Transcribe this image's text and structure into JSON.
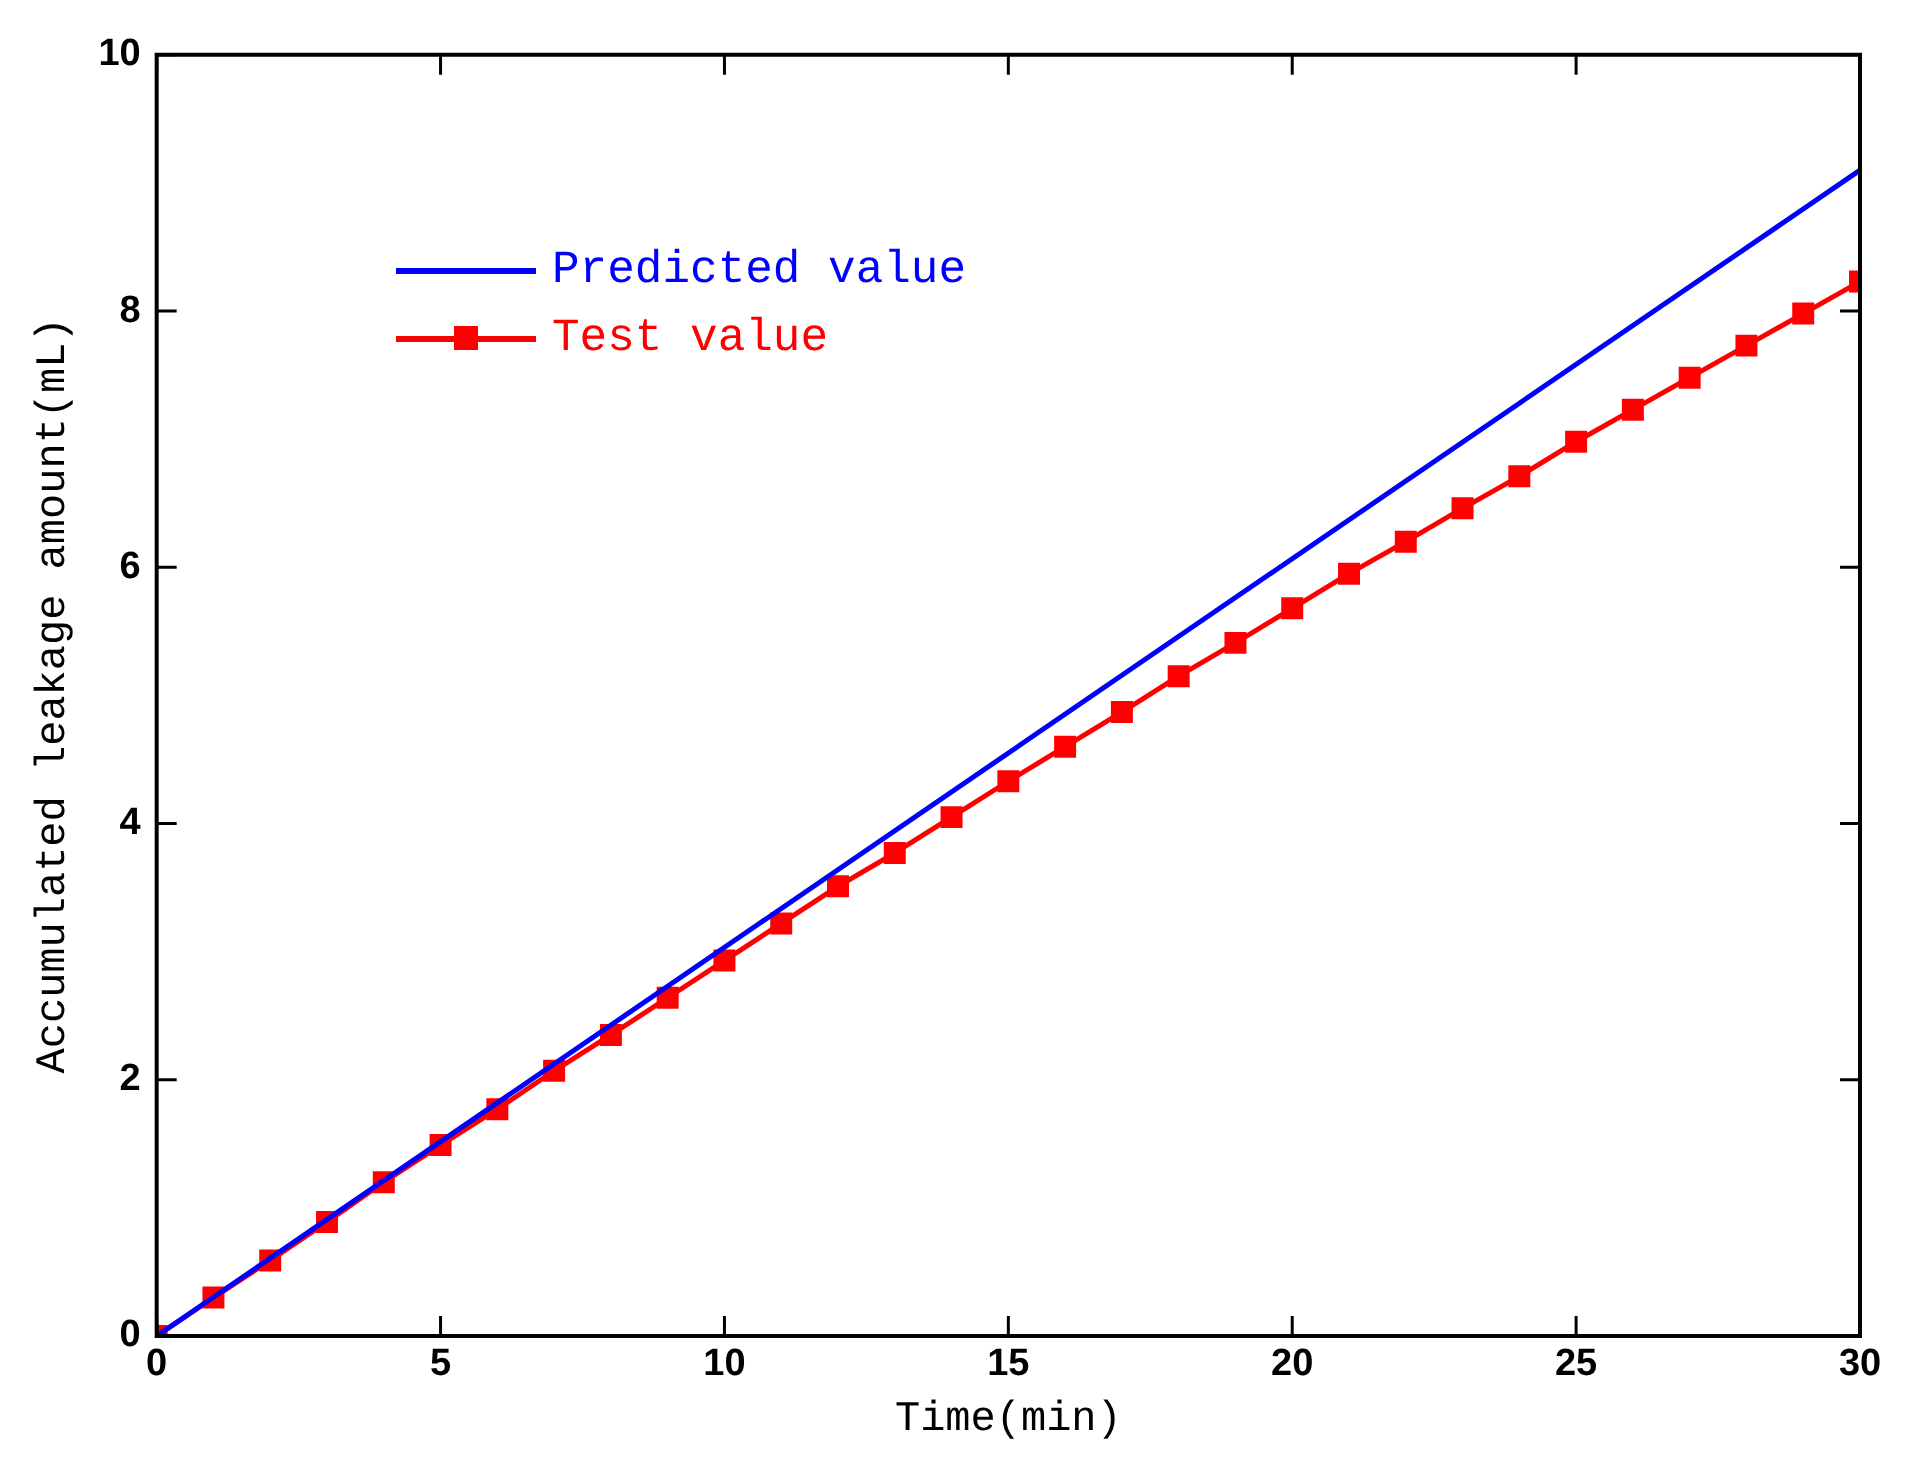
{
  "chart_data": {
    "type": "line",
    "xlabel": "Time(min)",
    "ylabel": "Accumulated leakage amount(mL)",
    "xlim": [
      0,
      30
    ],
    "xticks": [
      0,
      5,
      10,
      15,
      20,
      25,
      30
    ],
    "ylim": [
      0,
      10
    ],
    "yticks": [
      0,
      2,
      4,
      6,
      8,
      10
    ],
    "grid": false,
    "legend": "top left",
    "line_style": "solid",
    "series": [
      {
        "name": "Predicted value",
        "color": "#0000ff",
        "marker": "none",
        "x": [
          0,
          30
        ],
        "values": [
          0,
          9.1
        ]
      },
      {
        "name": "Test value",
        "color": "#ff0000",
        "marker": "square",
        "x": [
          0,
          1,
          2,
          3,
          4,
          5,
          6,
          7,
          8,
          9,
          10,
          11,
          12,
          13,
          14,
          15,
          16,
          17,
          18,
          19,
          20,
          21,
          22,
          23,
          24,
          25,
          26,
          27,
          28,
          29,
          30
        ],
        "values": [
          0,
          0.3,
          0.59,
          0.89,
          1.2,
          1.49,
          1.77,
          2.07,
          2.35,
          2.64,
          2.93,
          3.22,
          3.51,
          3.77,
          4.05,
          4.33,
          4.6,
          4.87,
          5.15,
          5.41,
          5.68,
          5.95,
          6.2,
          6.46,
          6.71,
          6.98,
          7.23,
          7.48,
          7.73,
          7.98,
          8.23
        ]
      }
    ]
  }
}
